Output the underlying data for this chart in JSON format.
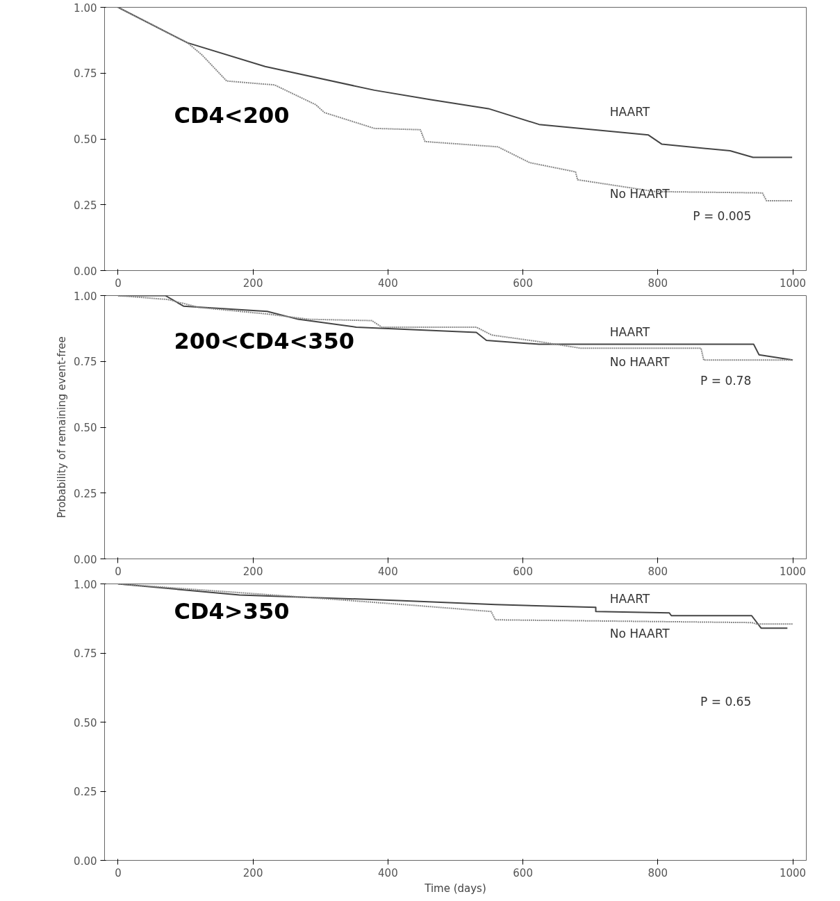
{
  "chart_data": [
    {
      "type": "line",
      "title": "CD4<200",
      "xlim": [
        -20,
        1020
      ],
      "ylim": [
        0,
        1.0
      ],
      "xticks": [
        0,
        200,
        400,
        600,
        800,
        1000
      ],
      "yticks": [
        {
          "value": 0,
          "label": "0.00"
        },
        {
          "value": 0.25,
          "label": "0.25"
        },
        {
          "value": 0.5,
          "label": "0.50"
        },
        {
          "value": 0.75,
          "label": "0.75"
        },
        {
          "value": 1.0,
          "label": "1.00"
        }
      ],
      "grid": false,
      "legend": false,
      "annotations": [
        "P = 0.005"
      ],
      "series": [
        {
          "name": "HAART",
          "color": "#444444",
          "line_style": "solid",
          "x": [
            0,
            103,
            218,
            380,
            462,
            549,
            624,
            786,
            806,
            907,
            941,
            999
          ],
          "values": [
            1.0,
            0.865,
            0.775,
            0.685,
            0.65,
            0.615,
            0.555,
            0.515,
            0.48,
            0.455,
            0.43,
            0.43
          ]
        },
        {
          "name": "No HAART",
          "color": "#888888",
          "line_style": "dotted",
          "x": [
            0,
            103,
            124,
            137,
            161,
            232,
            293,
            306,
            380,
            448,
            455,
            563,
            610,
            678,
            681,
            745,
            796,
            955,
            961,
            999
          ],
          "values": [
            1.0,
            0.865,
            0.82,
            0.785,
            0.72,
            0.705,
            0.63,
            0.6,
            0.54,
            0.535,
            0.49,
            0.47,
            0.41,
            0.375,
            0.345,
            0.32,
            0.3,
            0.295,
            0.265,
            0.265
          ]
        }
      ]
    },
    {
      "type": "line",
      "title": "200<CD4<350",
      "ylabel": "Probability of remaining event-free",
      "xlim": [
        -20,
        1020
      ],
      "ylim": [
        0,
        1.0
      ],
      "xticks": [
        0,
        200,
        400,
        600,
        800,
        1000
      ],
      "yticks": [
        {
          "value": 0,
          "label": "0.00"
        },
        {
          "value": 0.25,
          "label": "0.25"
        },
        {
          "value": 0.5,
          "label": "0.50"
        },
        {
          "value": 0.75,
          "label": "0.75"
        },
        {
          "value": 1.0,
          "label": "1.00"
        }
      ],
      "grid": false,
      "legend": false,
      "annotations": [
        "P = 0.78"
      ],
      "series": [
        {
          "name": "HAART",
          "color": "#444444",
          "line_style": "solid",
          "x": [
            0,
            70,
            97,
            221,
            267,
            353,
            531,
            546,
            624,
            942,
            950,
            1000
          ],
          "values": [
            1.0,
            1.0,
            0.96,
            0.94,
            0.91,
            0.88,
            0.86,
            0.83,
            0.815,
            0.815,
            0.775,
            0.755
          ]
        },
        {
          "name": "No HAART",
          "color": "#888888",
          "line_style": "dotted",
          "x": [
            0,
            74,
            120,
            221,
            283,
            376,
            391,
            531,
            554,
            624,
            686,
            864,
            868,
            1000
          ],
          "values": [
            1.0,
            0.985,
            0.955,
            0.93,
            0.91,
            0.905,
            0.88,
            0.88,
            0.85,
            0.825,
            0.8,
            0.8,
            0.755,
            0.755
          ]
        }
      ]
    },
    {
      "type": "line",
      "title": "CD4>350",
      "xlabel": "Time (days)",
      "xlim": [
        -20,
        1020
      ],
      "ylim": [
        0,
        1.0
      ],
      "xticks": [
        0,
        200,
        400,
        600,
        800,
        1000
      ],
      "yticks": [
        {
          "value": 0,
          "label": "0.00"
        },
        {
          "value": 0.25,
          "label": "0.25"
        },
        {
          "value": 0.5,
          "label": "0.50"
        },
        {
          "value": 0.75,
          "label": "0.75"
        },
        {
          "value": 1.0,
          "label": "1.00"
        }
      ],
      "grid": false,
      "legend": false,
      "annotations": [
        "P = 0.65"
      ],
      "series": [
        {
          "name": "HAART",
          "color": "#444444",
          "line_style": "solid",
          "x": [
            0,
            180,
            416,
            559,
            708,
            708,
            817,
            820,
            939,
            953,
            992
          ],
          "values": [
            1.0,
            0.96,
            0.94,
            0.925,
            0.915,
            0.9,
            0.895,
            0.885,
            0.885,
            0.84,
            0.84
          ]
        },
        {
          "name": "No HAART",
          "color": "#888888",
          "line_style": "dotted",
          "x": [
            0,
            112,
            315,
            451,
            553,
            559,
            939,
            946,
            1000
          ],
          "values": [
            1.0,
            0.98,
            0.945,
            0.92,
            0.9,
            0.87,
            0.86,
            0.855,
            0.855
          ]
        }
      ]
    }
  ]
}
